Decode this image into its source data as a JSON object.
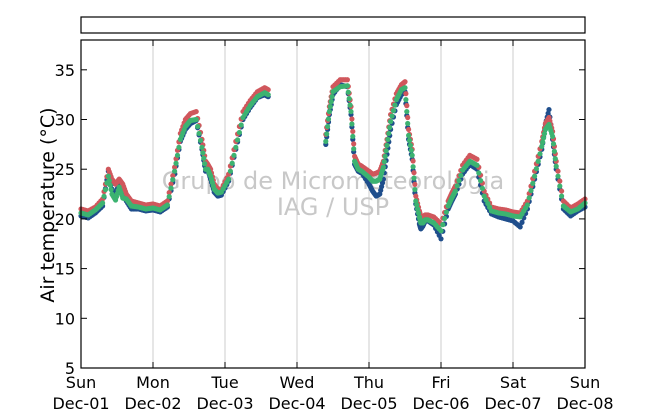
{
  "chart_data": {
    "type": "scatter",
    "ylabel": "Air temperature (°C)",
    "ylim": [
      5,
      38
    ],
    "yticks": [
      5,
      10,
      15,
      20,
      25,
      30,
      35
    ],
    "xlim": [
      0,
      7
    ],
    "xticks": [
      {
        "x": 0,
        "day": "Sun",
        "date": "Dec-01"
      },
      {
        "x": 1,
        "day": "Mon",
        "date": "Dec-02"
      },
      {
        "x": 2,
        "day": "Tue",
        "date": "Dec-03"
      },
      {
        "x": 3,
        "day": "Wed",
        "date": "Dec-04"
      },
      {
        "x": 4,
        "day": "Thu",
        "date": "Dec-05"
      },
      {
        "x": 5,
        "day": "Fri",
        "date": "Dec-06"
      },
      {
        "x": 6,
        "day": "Sat",
        "date": "Dec-07"
      },
      {
        "x": 7,
        "day": "Sun",
        "date": "Dec-08"
      }
    ],
    "grid": "vertical",
    "watermark": [
      "Grupo de Micrometeorologia",
      "IAG / USP"
    ],
    "colors": {
      "series_dark": "#1f4e8c",
      "series_red": "#d0575c",
      "series_green": "#3cb371"
    },
    "series": [
      {
        "color": "#1f4e8c",
        "x": [
          0.0,
          0.1,
          0.2,
          0.3,
          0.38,
          0.43,
          0.48,
          0.53,
          0.58,
          0.63,
          0.7,
          0.8,
          0.9,
          1.0,
          1.1,
          1.2,
          1.3,
          1.38,
          1.45,
          1.52,
          1.6,
          1.68,
          1.73,
          1.76,
          1.8,
          1.85,
          1.9,
          1.95,
          2.05,
          2.15,
          2.25,
          2.35,
          2.45,
          2.55,
          2.6,
          3.4,
          3.45,
          3.5,
          3.6,
          3.7,
          3.75,
          3.8,
          3.85,
          3.9,
          4.0,
          4.05,
          4.1,
          4.15,
          4.2,
          4.25,
          4.3,
          4.38,
          4.45,
          4.5,
          4.55,
          4.6,
          4.65,
          4.7,
          4.72,
          4.75,
          4.78,
          4.82,
          4.9,
          5.0,
          5.1,
          5.15,
          5.2,
          5.3,
          5.4,
          5.5,
          5.6,
          5.7,
          5.8,
          5.9,
          6.0,
          6.1,
          6.2,
          6.3,
          6.4,
          6.45,
          6.5,
          6.55,
          6.6,
          6.7,
          6.8,
          6.9,
          7.0
        ],
        "y": [
          20.3,
          20.1,
          20.6,
          21.3,
          24.8,
          23.0,
          22.3,
          23.8,
          22.6,
          21.8,
          21.0,
          21.0,
          20.8,
          20.9,
          20.7,
          21.2,
          24.5,
          27.8,
          29.0,
          29.6,
          29.9,
          27.0,
          24.8,
          25.0,
          24.0,
          22.7,
          22.3,
          22.4,
          23.8,
          27.0,
          30.0,
          31.2,
          32.2,
          32.5,
          32.3,
          27.5,
          30.5,
          32.5,
          33.5,
          33.3,
          30.5,
          25.5,
          24.8,
          24.6,
          23.5,
          22.8,
          22.3,
          22.5,
          24.0,
          26.5,
          29.0,
          31.5,
          32.5,
          32.8,
          28.0,
          26.0,
          21.5,
          19.5,
          19.0,
          19.3,
          19.8,
          19.8,
          19.4,
          18.0,
          21.0,
          21.8,
          22.5,
          24.5,
          25.5,
          25.0,
          21.8,
          20.5,
          20.2,
          20.0,
          19.8,
          19.2,
          21.0,
          24.0,
          27.0,
          29.5,
          31.0,
          28.0,
          25.0,
          21.0,
          20.3,
          20.8,
          21.2
        ]
      },
      {
        "color": "#d0575c",
        "x": [
          0.0,
          0.1,
          0.2,
          0.3,
          0.38,
          0.43,
          0.48,
          0.53,
          0.58,
          0.63,
          0.7,
          0.8,
          0.9,
          1.0,
          1.1,
          1.2,
          1.3,
          1.38,
          1.45,
          1.52,
          1.6,
          1.68,
          1.73,
          1.76,
          1.8,
          1.85,
          1.9,
          1.95,
          2.05,
          2.15,
          2.25,
          2.35,
          2.45,
          2.55,
          2.6,
          3.4,
          3.45,
          3.5,
          3.6,
          3.7,
          3.75,
          3.8,
          3.85,
          3.9,
          4.0,
          4.05,
          4.1,
          4.15,
          4.2,
          4.25,
          4.3,
          4.38,
          4.45,
          4.5,
          4.55,
          4.6,
          4.65,
          4.7,
          4.72,
          4.75,
          4.78,
          4.82,
          4.9,
          5.0,
          5.1,
          5.15,
          5.2,
          5.3,
          5.4,
          5.5,
          5.6,
          5.7,
          5.8,
          5.9,
          6.0,
          6.1,
          6.2,
          6.3,
          6.4,
          6.45,
          6.5,
          6.55,
          6.6,
          6.7,
          6.8,
          6.9,
          7.0
        ],
        "y": [
          21.0,
          20.8,
          21.2,
          22.0,
          25.0,
          24.0,
          23.5,
          24.0,
          23.5,
          22.5,
          21.8,
          21.6,
          21.4,
          21.5,
          21.3,
          21.8,
          25.2,
          28.6,
          30.0,
          30.6,
          30.8,
          28.0,
          25.8,
          25.5,
          25.0,
          23.5,
          23.0,
          23.0,
          24.5,
          27.8,
          30.8,
          31.9,
          32.8,
          33.2,
          33.0,
          28.5,
          31.3,
          33.3,
          34.0,
          34.0,
          31.3,
          26.3,
          25.5,
          25.3,
          24.8,
          24.5,
          24.6,
          24.8,
          25.8,
          28.0,
          30.5,
          32.6,
          33.5,
          33.8,
          29.0,
          27.0,
          22.3,
          20.8,
          20.2,
          20.2,
          20.4,
          20.4,
          20.2,
          19.5,
          21.8,
          22.6,
          23.3,
          25.4,
          26.4,
          26.0,
          22.8,
          21.2,
          21.0,
          20.9,
          20.7,
          20.6,
          21.8,
          24.8,
          27.8,
          29.6,
          30.2,
          28.8,
          25.8,
          21.8,
          21.1,
          21.5,
          22.0
        ]
      },
      {
        "color": "#3cb371",
        "x": [
          0.0,
          0.1,
          0.2,
          0.3,
          0.38,
          0.43,
          0.48,
          0.53,
          0.58,
          0.63,
          0.7,
          0.8,
          0.9,
          1.0,
          1.1,
          1.2,
          1.3,
          1.38,
          1.45,
          1.52,
          1.6,
          1.68,
          1.73,
          1.76,
          1.8,
          1.85,
          1.9,
          1.95,
          2.05,
          2.15,
          2.25,
          2.35,
          2.45,
          2.55,
          2.6,
          3.4,
          3.45,
          3.5,
          3.6,
          3.7,
          3.75,
          3.8,
          3.85,
          3.9,
          4.0,
          4.05,
          4.1,
          4.15,
          4.2,
          4.25,
          4.3,
          4.38,
          4.45,
          4.5,
          4.55,
          4.6,
          4.65,
          4.7,
          4.72,
          4.75,
          4.78,
          4.82,
          4.9,
          5.0,
          5.1,
          5.15,
          5.2,
          5.3,
          5.4,
          5.5,
          5.6,
          5.7,
          5.8,
          5.9,
          6.0,
          6.1,
          6.2,
          6.3,
          6.4,
          6.45,
          6.5,
          6.55,
          6.6,
          6.7,
          6.8,
          6.9,
          7.0
        ],
        "y": [
          20.6,
          20.4,
          20.9,
          21.6,
          24.3,
          22.5,
          21.9,
          23.2,
          22.1,
          22.0,
          21.3,
          21.2,
          21.0,
          21.1,
          20.9,
          21.4,
          24.8,
          28.0,
          29.3,
          29.9,
          30.0,
          27.2,
          25.0,
          25.0,
          24.3,
          23.0,
          22.6,
          22.7,
          24.0,
          27.2,
          30.2,
          31.4,
          32.3,
          32.7,
          32.5,
          27.8,
          30.8,
          32.8,
          33.3,
          33.4,
          30.8,
          25.8,
          25.0,
          24.8,
          24.2,
          23.8,
          23.8,
          24.0,
          25.2,
          27.4,
          29.8,
          32.0,
          33.0,
          33.2,
          28.4,
          26.4,
          21.8,
          20.2,
          19.6,
          19.6,
          19.9,
          19.9,
          19.6,
          18.8,
          21.3,
          22.1,
          22.8,
          24.9,
          25.8,
          25.4,
          22.3,
          20.8,
          20.6,
          20.5,
          20.3,
          20.2,
          21.4,
          24.3,
          27.3,
          29.0,
          29.5,
          28.3,
          25.3,
          21.3,
          20.7,
          21.0,
          21.6
        ]
      }
    ]
  }
}
